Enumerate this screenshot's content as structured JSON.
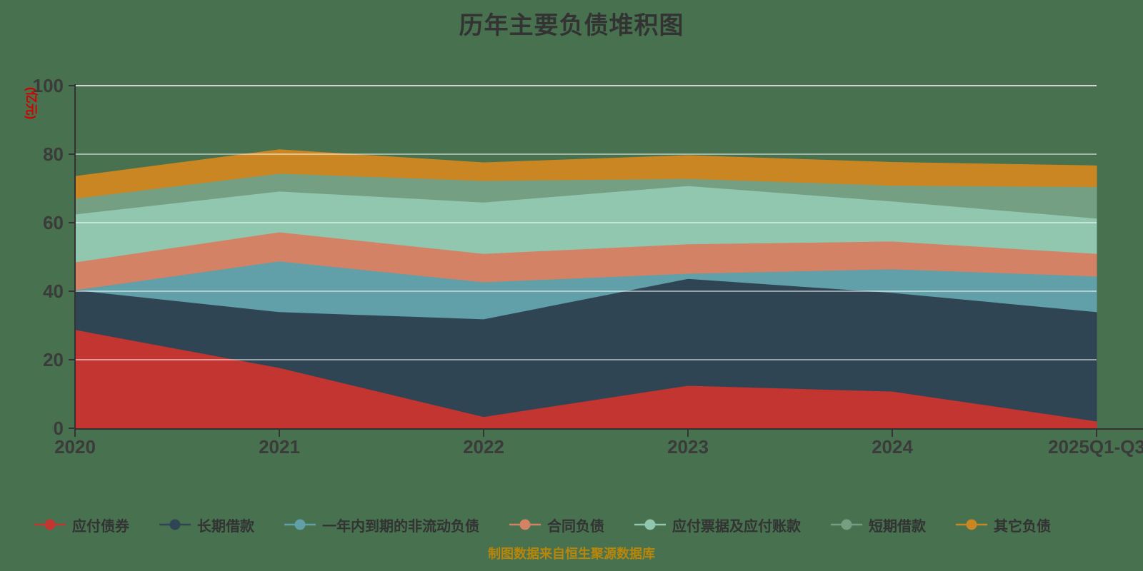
{
  "title": "历年主要负债堆积图",
  "footer": "制图数据来自恒生聚源数据库",
  "colors": {
    "background": "#47714f",
    "title_text": "#333333",
    "axis_text": "#3b3b3b",
    "axis_line": "#333333",
    "grid_line_top": "#d4d4d4",
    "grid_line": "rgba(255,255,255,0.5)",
    "y_axis_name_text": "#d40000",
    "footer_text": "#b8860b"
  },
  "chart_data": {
    "type": "area",
    "stacked": true,
    "title": "历年主要负债堆积图",
    "ylabel": "(亿元)",
    "xlabel": "",
    "ylim": [
      0,
      100
    ],
    "yticks": [
      0,
      20,
      40,
      60,
      80,
      100
    ],
    "grid": true,
    "legend_position": "bottom",
    "categories": [
      "2020",
      "2021",
      "2022",
      "2023",
      "2024",
      "2025Q1-Q3"
    ],
    "series": [
      {
        "name": "应付债券",
        "color": "#c23531",
        "values": [
          28.8,
          17.7,
          3.4,
          12.5,
          10.8,
          2.1
        ]
      },
      {
        "name": "长期借款",
        "color": "#2f4554",
        "values": [
          11.6,
          16.3,
          28.5,
          31.2,
          28.8,
          31.9
        ]
      },
      {
        "name": "一年内到期的非流动负债",
        "color": "#61a0a8",
        "values": [
          0.0,
          14.8,
          10.8,
          1.5,
          6.9,
          10.4
        ]
      },
      {
        "name": "合同负债",
        "color": "#d48265",
        "values": [
          8.1,
          8.5,
          8.3,
          8.6,
          8.1,
          6.6
        ]
      },
      {
        "name": "应付票据及应付账款",
        "color": "#91c7ae",
        "values": [
          14.0,
          11.9,
          15.0,
          17.0,
          11.7,
          10.3
        ]
      },
      {
        "name": "短期借款",
        "color": "#749f83",
        "values": [
          4.6,
          5.2,
          6.3,
          2.1,
          4.6,
          9.2
        ]
      },
      {
        "name": "其它负债",
        "color": "#ca8622",
        "values": [
          6.4,
          6.9,
          5.2,
          6.7,
          6.7,
          6.1
        ]
      }
    ],
    "totals": [
      73.5,
      81.3,
      77.5,
      79.6,
      77.6,
      76.6
    ]
  }
}
